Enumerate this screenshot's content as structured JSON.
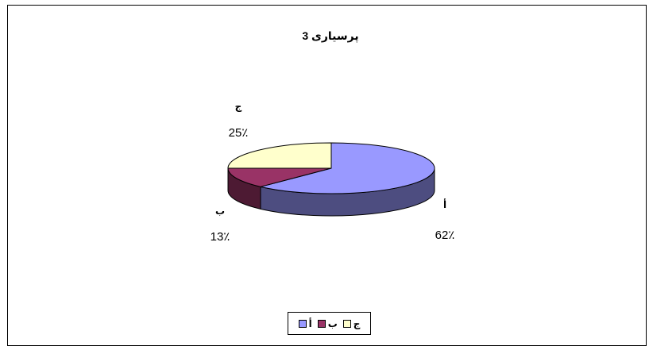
{
  "chart_data": {
    "type": "pie",
    "title": "پرسیاری 3",
    "categories": [
      "أ",
      "ب",
      "ج"
    ],
    "values": [
      62,
      13,
      25
    ],
    "value_labels": [
      "62٪",
      "13٪",
      "25٪"
    ],
    "colors": [
      "#9999ff",
      "#993366",
      "#ffffcc"
    ],
    "legend": {
      "position": "bottom",
      "entries": [
        "ج",
        "ب",
        "أ"
      ]
    },
    "three_d": true
  }
}
